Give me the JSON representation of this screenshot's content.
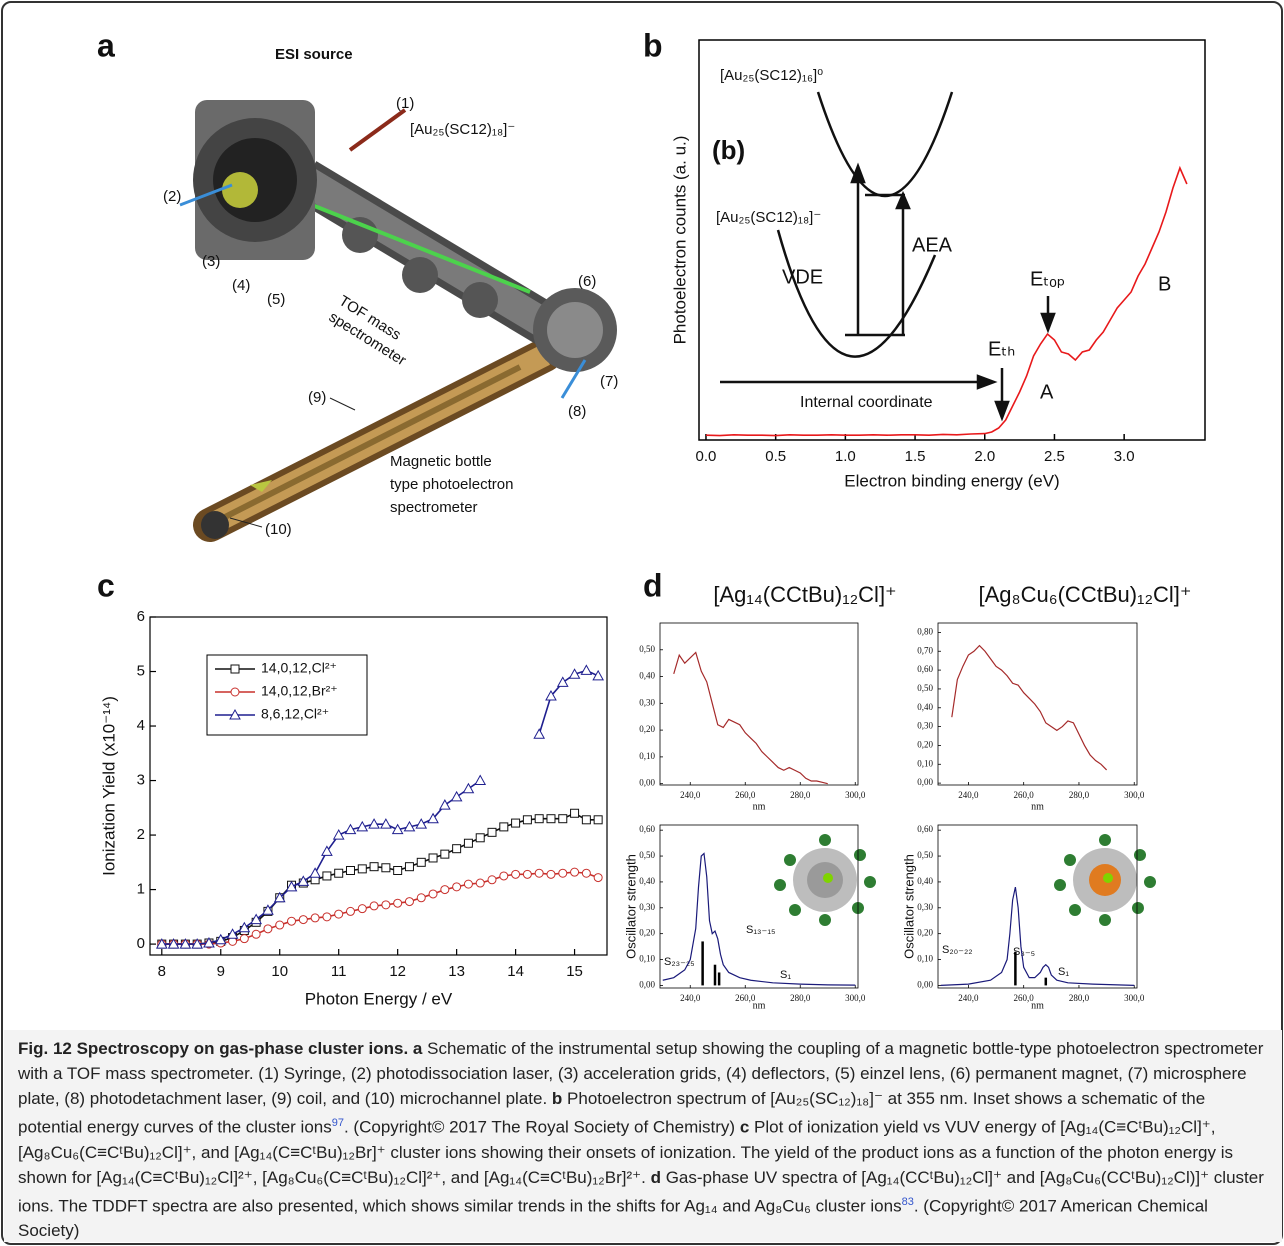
{
  "panel_labels": [
    "a",
    "b",
    "c",
    "d"
  ],
  "panel_a": {
    "source": "ESI source",
    "ion": "[Au₂₅(SC12)₁₈]⁻",
    "parts": [
      "(1)",
      "(2)",
      "(3)",
      "(4)",
      "(5)",
      "(6)",
      "(7)",
      "(8)",
      "(9)",
      "(10)"
    ],
    "tof": [
      "TOF mass",
      "spectrometer"
    ],
    "bottle": [
      "Magnetic bottle",
      "type photoelectron",
      "spectrometer"
    ]
  },
  "chart_data": [
    {
      "type": "line",
      "xlabel": "Electron binding energy (eV)",
      "ylabel": "Photoelectron counts (a. u.)",
      "xlim": [
        -0.05,
        3.58
      ],
      "ylim": [
        0,
        100
      ],
      "xticks": [
        {
          "value": 0,
          "label": "0.0"
        },
        0.5,
        {
          "value": 1,
          "label": "1.0"
        },
        1.5,
        {
          "value": 2,
          "label": "2.0"
        },
        2.5,
        {
          "value": 3,
          "label": "3.0"
        }
      ],
      "x": [
        0,
        0.1,
        0.2,
        0.3,
        0.4,
        0.5,
        0.6,
        0.7,
        0.8,
        0.9,
        1.0,
        1.1,
        1.2,
        1.3,
        1.4,
        1.5,
        1.6,
        1.7,
        1.8,
        1.9,
        2.0,
        2.05,
        2.1,
        2.15,
        2.2,
        2.25,
        2.3,
        2.35,
        2.4,
        2.45,
        2.5,
        2.55,
        2.6,
        2.65,
        2.7,
        2.75,
        2.8,
        2.85,
        2.9,
        2.95,
        3.0,
        3.05,
        3.1,
        3.15,
        3.2,
        3.25,
        3.3,
        3.35,
        3.4,
        3.45
      ],
      "series": [
        {
          "color": "#e8191b",
          "values": [
            1.2,
            1.1,
            1.3,
            1.2,
            1.2,
            1.1,
            1.3,
            1.2,
            1.2,
            1.3,
            1.2,
            1.2,
            1.3,
            1.2,
            1.3,
            1.3,
            1.2,
            1.4,
            1.3,
            1.5,
            1.6,
            2.0,
            3.0,
            5.0,
            8.5,
            12,
            16,
            21,
            24,
            26.5,
            25,
            22,
            21.5,
            20,
            22,
            22.5,
            25,
            27,
            30,
            33,
            35,
            37,
            41,
            44,
            48,
            52,
            57,
            63,
            68,
            64
          ]
        }
      ],
      "inset": {
        "label": "(b)",
        "upper": "[Au₂₅(SC12)₁₆]⁰",
        "lower": "[Au₂₅(SC12)₁₈]⁻",
        "vde": "VDE",
        "aea": "AEA",
        "axis": "Internal coordinate"
      },
      "annotations": {
        "eth": "Eₜₕ",
        "etop": "Eₜₒₚ",
        "a": "A",
        "b": "B"
      }
    },
    {
      "type": "line",
      "xlabel": "Photon Energy / eV",
      "ylabel": "Ionization Yield (x10⁻¹⁴)",
      "xlim": [
        7.8,
        15.55
      ],
      "ylim": [
        -0.2,
        6
      ],
      "xticks": [
        8,
        9,
        10,
        11,
        12,
        13,
        14,
        15
      ],
      "yticks": [
        0,
        1,
        2,
        3,
        4,
        5,
        6
      ],
      "legend": "upper left",
      "x": [
        8,
        8.2,
        8.4,
        8.6,
        8.8,
        9,
        9.2,
        9.4,
        9.6,
        9.8,
        10,
        10.2,
        10.4,
        10.6,
        10.8,
        11,
        11.2,
        11.4,
        11.6,
        11.8,
        12,
        12.2,
        12.4,
        12.6,
        12.8,
        13,
        13.2,
        13.4,
        13.6,
        13.8,
        14,
        14.2,
        14.4,
        14.6,
        14.8,
        15,
        15.2,
        15.4
      ],
      "series": [
        {
          "name": "14,0,12,Cl²⁺",
          "color": "#111111",
          "marker": "square",
          "values": [
            0,
            0,
            0,
            0,
            0.02,
            0.05,
            0.12,
            0.25,
            0.4,
            0.6,
            0.85,
            1.08,
            1.12,
            1.18,
            1.25,
            1.3,
            1.35,
            1.38,
            1.42,
            1.4,
            1.35,
            1.42,
            1.5,
            1.58,
            1.65,
            1.75,
            1.85,
            1.95,
            2.05,
            2.15,
            2.22,
            2.28,
            2.3,
            2.3,
            2.3,
            2.4,
            2.28,
            2.28
          ]
        },
        {
          "name": "14,0,12,Br²⁺",
          "color": "#c8302c",
          "marker": "circle",
          "values": [
            0,
            0,
            0,
            0,
            0,
            0.02,
            0.05,
            0.1,
            0.18,
            0.28,
            0.35,
            0.42,
            0.45,
            0.48,
            0.5,
            0.55,
            0.6,
            0.65,
            0.7,
            0.72,
            0.75,
            0.78,
            0.85,
            0.92,
            1.0,
            1.05,
            1.1,
            1.12,
            1.18,
            1.25,
            1.28,
            1.28,
            1.3,
            1.28,
            1.3,
            1.32,
            1.3,
            1.22
          ]
        },
        {
          "name": "8,6,12,Cl²⁺",
          "color": "#1f1f8f",
          "marker": "triangle",
          "values": [
            0,
            0,
            0,
            0,
            0.02,
            0.08,
            0.18,
            0.3,
            0.45,
            0.62,
            0.85,
            1.05,
            1.15,
            1.3,
            1.7,
            2.0,
            2.1,
            2.15,
            2.2,
            2.2,
            2.1,
            2.15,
            2.2,
            2.3,
            2.55,
            2.7,
            2.85,
            3.0,
            null,
            null,
            null,
            null,
            3.85,
            4.55,
            4.8,
            4.95,
            5.02,
            4.92
          ]
        }
      ]
    },
    {
      "type": "line",
      "title": "[Ag₁₄(CCtBu)₁₂Cl]⁺",
      "xlabel": "nm",
      "xlim": [
        229,
        301
      ],
      "ylim": [
        -0.005,
        0.6
      ],
      "xticks": [
        {
          "value": 240,
          "label": "240,0"
        },
        {
          "value": 260,
          "label": "260,0"
        },
        {
          "value": 280,
          "label": "280,0"
        },
        {
          "value": 300,
          "label": "300,0"
        }
      ],
      "yticks": [
        {
          "value": 0,
          "label": "0,00"
        },
        {
          "value": 0.1,
          "label": "0,10"
        },
        {
          "value": 0.2,
          "label": "0,20"
        },
        {
          "value": 0.3,
          "label": "0,30"
        },
        {
          "value": 0.4,
          "label": "0,40"
        },
        {
          "value": 0.5,
          "label": "0,50"
        }
      ],
      "x": [
        234,
        236,
        238,
        240,
        242,
        244,
        246,
        248,
        250,
        252,
        254,
        256,
        258,
        260,
        262,
        264,
        266,
        268,
        270,
        272,
        274,
        276,
        278,
        280,
        282,
        284,
        286,
        288,
        290
      ],
      "series": [
        {
          "color": "#a52a2a",
          "values": [
            0.41,
            0.48,
            0.45,
            0.47,
            0.49,
            0.42,
            0.38,
            0.3,
            0.22,
            0.21,
            0.24,
            0.23,
            0.22,
            0.19,
            0.17,
            0.15,
            0.12,
            0.1,
            0.08,
            0.06,
            0.05,
            0.06,
            0.05,
            0.04,
            0.02,
            0.01,
            0.01,
            0.005,
            0.0
          ]
        }
      ]
    },
    {
      "type": "line",
      "title": "[Ag₈Cu₆(CCtBu)₁₂Cl]⁺",
      "xlabel": "nm",
      "xlim": [
        229,
        301
      ],
      "ylim": [
        -0.01,
        0.85
      ],
      "xticks": [
        {
          "value": 240,
          "label": "240,0"
        },
        {
          "value": 260,
          "label": "260,0"
        },
        {
          "value": 280,
          "label": "280,0"
        },
        {
          "value": 300,
          "label": "300,0"
        }
      ],
      "yticks": [
        {
          "value": 0,
          "label": "0,00"
        },
        {
          "value": 0.1,
          "label": "0,10"
        },
        {
          "value": 0.2,
          "label": "0,20"
        },
        {
          "value": 0.3,
          "label": "0,30"
        },
        {
          "value": 0.4,
          "label": "0,40"
        },
        {
          "value": 0.5,
          "label": "0,50"
        },
        {
          "value": 0.6,
          "label": "0,60"
        },
        {
          "value": 0.7,
          "label": "0,70"
        },
        {
          "value": 0.8,
          "label": "0,80"
        }
      ],
      "x": [
        234,
        236,
        238,
        240,
        242,
        244,
        246,
        248,
        250,
        252,
        254,
        256,
        258,
        260,
        262,
        264,
        266,
        268,
        270,
        272,
        274,
        276,
        278,
        280,
        282,
        284,
        286,
        288,
        290
      ],
      "series": [
        {
          "color": "#a52a2a",
          "values": [
            0.35,
            0.55,
            0.62,
            0.68,
            0.7,
            0.73,
            0.7,
            0.66,
            0.62,
            0.6,
            0.57,
            0.53,
            0.52,
            0.48,
            0.45,
            0.42,
            0.38,
            0.32,
            0.3,
            0.28,
            0.3,
            0.33,
            0.32,
            0.26,
            0.2,
            0.15,
            0.12,
            0.1,
            0.07
          ]
        }
      ]
    },
    {
      "type": "line",
      "xlabel": "nm",
      "ylabel": "Oscillator strength",
      "xlim": [
        229,
        301
      ],
      "ylim": [
        -0.01,
        0.62
      ],
      "xticks": [
        {
          "value": 240,
          "label": "240,0"
        },
        {
          "value": 260,
          "label": "260,0"
        },
        {
          "value": 280,
          "label": "280,0"
        },
        {
          "value": 300,
          "label": "300,0"
        }
      ],
      "yticks": [
        {
          "value": 0,
          "label": "0,00"
        },
        {
          "value": 0.1,
          "label": "0,10"
        },
        {
          "value": 0.2,
          "label": "0,20"
        },
        {
          "value": 0.3,
          "label": "0,30"
        },
        {
          "value": 0.4,
          "label": "0,40"
        },
        {
          "value": 0.5,
          "label": "0,50"
        },
        {
          "value": 0.6,
          "label": "0,60"
        }
      ],
      "x": [
        230,
        234,
        238,
        240,
        242,
        243,
        244,
        245,
        246,
        247,
        248,
        249,
        250,
        251,
        252,
        254,
        256,
        258,
        262,
        270,
        280,
        290,
        300
      ],
      "series": [
        {
          "color": "#1a1a7a",
          "values": [
            0.02,
            0.03,
            0.06,
            0.1,
            0.22,
            0.38,
            0.5,
            0.51,
            0.42,
            0.25,
            0.2,
            0.21,
            0.18,
            0.12,
            0.08,
            0.05,
            0.04,
            0.03,
            0.02,
            0.01,
            0.005,
            0.002,
            0.001
          ]
        },
        {
          "type": "stick",
          "color": "#000000",
          "x": [
            244.5,
            249,
            250.5
          ],
          "values": [
            0.17,
            0.08,
            0.05
          ]
        }
      ],
      "annotations": [
        "S₂₃₋₂₅",
        "S₁₃₋₁₅",
        "S₁"
      ]
    },
    {
      "type": "line",
      "xlabel": "nm",
      "ylabel": "Oscillator strength",
      "xlim": [
        229,
        301
      ],
      "ylim": [
        -0.01,
        0.62
      ],
      "xticks": [
        {
          "value": 240,
          "label": "240,0"
        },
        {
          "value": 260,
          "label": "260,0"
        },
        {
          "value": 280,
          "label": "280,0"
        },
        {
          "value": 300,
          "label": "300,0"
        }
      ],
      "yticks": [
        {
          "value": 0,
          "label": "0,00"
        },
        {
          "value": 0.1,
          "label": "0,10"
        },
        {
          "value": 0.2,
          "label": "0,20"
        },
        {
          "value": 0.3,
          "label": "0,30"
        },
        {
          "value": 0.4,
          "label": "0,40"
        },
        {
          "value": 0.5,
          "label": "0,50"
        },
        {
          "value": 0.6,
          "label": "0,60"
        }
      ],
      "x": [
        230,
        240,
        248,
        252,
        254,
        255,
        256,
        257,
        258,
        259,
        260,
        262,
        264,
        266,
        267,
        268,
        269,
        270,
        272,
        276,
        285,
        300
      ],
      "series": [
        {
          "color": "#1a1a7a",
          "values": [
            0,
            0.005,
            0.02,
            0.05,
            0.1,
            0.2,
            0.33,
            0.38,
            0.3,
            0.15,
            0.07,
            0.03,
            0.03,
            0.05,
            0.07,
            0.08,
            0.07,
            0.04,
            0.02,
            0.01,
            0.005,
            0
          ]
        },
        {
          "type": "stick",
          "color": "#000000",
          "x": [
            257,
            268
          ],
          "values": [
            0.13,
            0.03
          ]
        }
      ],
      "annotations": [
        "S₂₀₋₂₂",
        "S₃₋₅",
        "S₁"
      ]
    }
  ],
  "caption": {
    "title": "Fig. 12 Spectroscopy on gas-phase cluster ions.",
    "parts": [
      {
        "label": "a",
        "text": "Schematic of the instrumental setup showing the coupling of a magnetic bottle-type photoelectron spectrometer with a TOF mass spectrometer. (1) Syringe, (2) photodissociation laser, (3) acceleration grids, (4) deflectors, (5) einzel lens, (6) permanent magnet, (7) microsphere plate, (8) photodetachment laser, (9) coil, and (10) microchannel plate."
      },
      {
        "label": "b",
        "text": "Photoelectron spectrum of [Au₂₅(SC₁₂)₁₈]⁻ at 355 nm. Inset shows a schematic of the potential energy curves of the cluster ions",
        "ref": "97",
        "after": ". (Copyright© 2017 The Royal Society of Chemistry)"
      },
      {
        "label": "c",
        "text": "Plot of ionization yield vs VUV energy of [Ag₁₄(C≡CᵗBu)₁₂Cl]⁺, [Ag₈Cu₆(C≡CᵗBu)₁₂Cl]⁺, and [Ag₁₄(C≡CᵗBu)₁₂Br]⁺ cluster ions showing their onsets of ionization. The yield of the product ions as a function of the photon energy is shown for [Ag₁₄(C≡CᵗBu)₁₂Cl]²⁺, [Ag₈Cu₆(C≡CᵗBu)₁₂Cl]²⁺, and [Ag₁₄(C≡CᵗBu)₁₂Br]²⁺."
      },
      {
        "label": "d",
        "text": "Gas-phase UV spectra of [Ag₁₄(CCᵗBu)₁₂Cl]⁺ and [Ag₈Cu₆(CCᵗBu)₁₂Cl)]⁺ cluster ions. The TDDFT spectra are also presented, which shows similar trends in the shifts for Ag₁₄ and Ag₈Cu₆ cluster ions",
        "ref": "83",
        "after": ". (Copyright© 2017 American Chemical Society)"
      }
    ]
  }
}
